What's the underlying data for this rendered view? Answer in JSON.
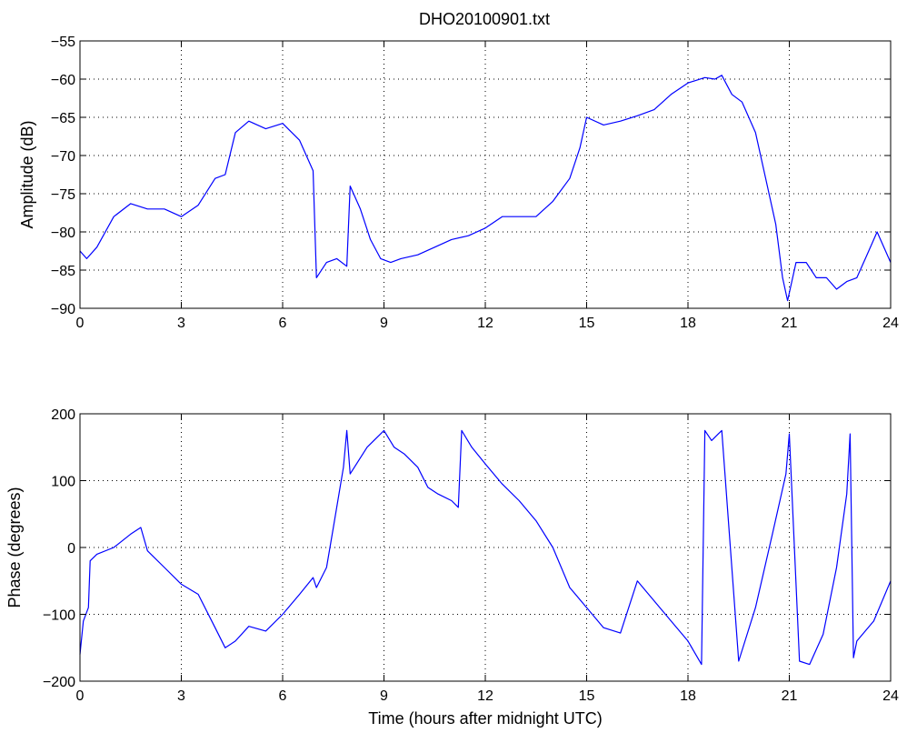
{
  "chart_data": [
    {
      "type": "line",
      "title": "DHO20100901.txt",
      "xlabel": "",
      "ylabel": "Amplitude (dB)",
      "xlim": [
        0,
        24
      ],
      "ylim": [
        -90,
        -55
      ],
      "xticks": [
        0,
        3,
        6,
        9,
        12,
        15,
        18,
        21,
        24
      ],
      "yticks": [
        -90,
        -85,
        -80,
        -75,
        -70,
        -65,
        -60,
        -55
      ],
      "grid": true,
      "line_color": "#0000ff",
      "series": [
        {
          "x": [
            0,
            0.2,
            0.5,
            1.0,
            1.5,
            2.0,
            2.5,
            3.0,
            3.5,
            4.0,
            4.3,
            4.6,
            5.0,
            5.5,
            6.0,
            6.5,
            6.9,
            7.0,
            7.3,
            7.6,
            7.9,
            8.0,
            8.3,
            8.6,
            8.9,
            9.2,
            9.5,
            10.0,
            10.5,
            11.0,
            11.5,
            12.0,
            12.5,
            13.0,
            13.5,
            14.0,
            14.5,
            14.8,
            15.0,
            15.5,
            16.0,
            16.5,
            17.0,
            17.5,
            18.0,
            18.5,
            18.8,
            19.0,
            19.3,
            19.6,
            20.0,
            20.3,
            20.6,
            20.8,
            20.95,
            21.2,
            21.5,
            21.8,
            22.1,
            22.4,
            22.7,
            23.0,
            23.3,
            23.6,
            24.0
          ],
          "y": [
            -82.5,
            -83.5,
            -82,
            -78,
            -76.3,
            -77,
            -77,
            -78,
            -76.5,
            -73,
            -72.5,
            -67,
            -65.5,
            -66.5,
            -65.8,
            -68,
            -72,
            -86,
            -84,
            -83.5,
            -84.5,
            -74,
            -77,
            -81,
            -83.5,
            -84,
            -83.5,
            -83,
            -82,
            -81,
            -80.5,
            -79.5,
            -78,
            -78,
            -78,
            -76,
            -73,
            -69,
            -65,
            -66,
            -65.5,
            -64.8,
            -64,
            -62,
            -60.5,
            -59.8,
            -60,
            -59.5,
            -62,
            -63,
            -67,
            -73,
            -79,
            -86,
            -89,
            -84,
            -84,
            -86,
            -86,
            -87.5,
            -86.5,
            -86,
            -83,
            -80,
            -84
          ]
        }
      ]
    },
    {
      "type": "line",
      "title": "",
      "xlabel": "Time (hours after midnight UTC)",
      "ylabel": "Phase (degrees)",
      "xlim": [
        0,
        24
      ],
      "ylim": [
        -200,
        200
      ],
      "xticks": [
        0,
        3,
        6,
        9,
        12,
        15,
        18,
        21,
        24
      ],
      "yticks": [
        -200,
        -100,
        0,
        100,
        200
      ],
      "grid": true,
      "line_color": "#0000ff",
      "series": [
        {
          "x": [
            0,
            0.1,
            0.25,
            0.3,
            0.5,
            1.0,
            1.5,
            1.8,
            2.0,
            2.5,
            3.0,
            3.5,
            4.0,
            4.3,
            4.6,
            5.0,
            5.5,
            6.0,
            6.5,
            6.9,
            7.0,
            7.3,
            7.5,
            7.8,
            7.9,
            8.0,
            8.5,
            9.0,
            9.3,
            9.6,
            10.0,
            10.3,
            10.6,
            11.0,
            11.2,
            11.3,
            11.6,
            12.0,
            12.5,
            13.0,
            13.5,
            14.0,
            14.5,
            15.0,
            15.5,
            16.0,
            16.5,
            17.0,
            17.5,
            18.0,
            18.4,
            18.5,
            18.7,
            18.9,
            19.0,
            19.5,
            20.0,
            20.5,
            20.9,
            21.0,
            21.3,
            21.6,
            22.0,
            22.4,
            22.7,
            22.8,
            22.9,
            23.0,
            23.5,
            24.0
          ],
          "y": [
            -160,
            -110,
            -90,
            -20,
            -10,
            0,
            20,
            30,
            -5,
            -30,
            -55,
            -70,
            -120,
            -150,
            -140,
            -118,
            -125,
            -100,
            -70,
            -45,
            -60,
            -30,
            30,
            120,
            175,
            110,
            150,
            175,
            150,
            140,
            120,
            90,
            80,
            70,
            60,
            175,
            150,
            125,
            95,
            70,
            40,
            0,
            -60,
            -90,
            -120,
            -128,
            -50,
            -80,
            -110,
            -140,
            -175,
            175,
            160,
            170,
            175,
            -170,
            -90,
            20,
            110,
            170,
            -170,
            -175,
            -130,
            -30,
            80,
            170,
            -165,
            -140,
            -110,
            -50
          ]
        }
      ]
    }
  ]
}
